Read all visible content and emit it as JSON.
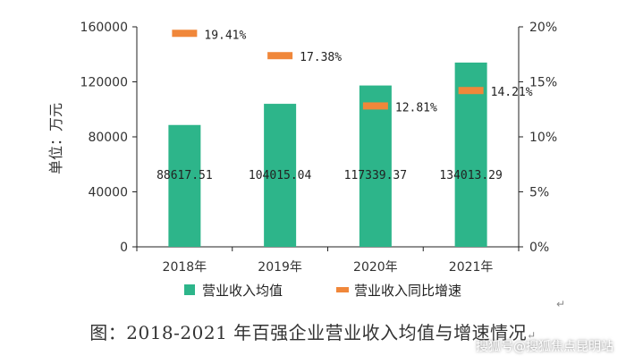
{
  "chart_data": {
    "type": "bar+line",
    "categories": [
      "2018年",
      "2019年",
      "2020年",
      "2021年"
    ],
    "ylabel": "单位：万元",
    "ylim": [
      0,
      160000
    ],
    "y_ticks": [
      "0",
      "40000",
      "80000",
      "120000",
      "160000"
    ],
    "y2lim": [
      0,
      20
    ],
    "y2_ticks": [
      "0%",
      "5%",
      "10%",
      "15%",
      "20%"
    ],
    "series": [
      {
        "name": "营业收入均值",
        "kind": "bar",
        "color": "#2db58a",
        "values": [
          88617.51,
          104015.04,
          117339.37,
          134013.29
        ],
        "labels": [
          "88617.51",
          "104015.04",
          "117339.37",
          "134013.29"
        ]
      },
      {
        "name": "营业收入同比增速",
        "kind": "marker",
        "axis": "secondary",
        "color": "#f0873a",
        "values": [
          19.41,
          17.38,
          12.81,
          14.21
        ],
        "labels": [
          "19.41%",
          "17.38%",
          "12.81%",
          "14.21%"
        ]
      }
    ],
    "legend_position": "bottom",
    "grid": false
  },
  "caption": "图：2018-2021 年百强企业营业收入均值与增速情况",
  "caption_mark": "↵",
  "watermark": "搜狐号@搜狐焦点昆明站"
}
